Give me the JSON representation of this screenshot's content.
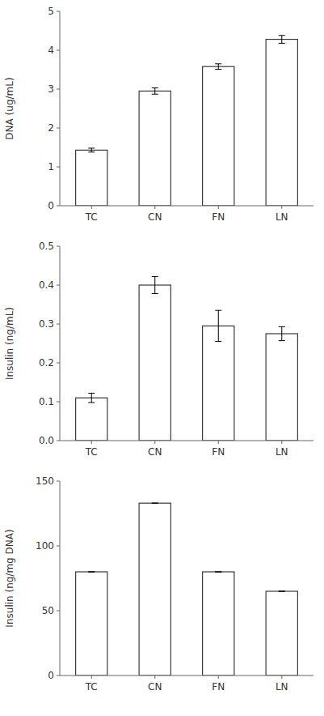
{
  "chart_data": [
    {
      "type": "bar",
      "categories": [
        "TC",
        "CN",
        "FN",
        "LN"
      ],
      "values": [
        1.43,
        2.95,
        3.58,
        4.28
      ],
      "errors": [
        0.05,
        0.08,
        0.07,
        0.1
      ],
      "y_label": "DNA (ug/mL)",
      "ylim": [
        0,
        5
      ],
      "yticks": [
        0,
        1,
        2,
        3,
        4,
        5
      ],
      "color": "#ffffff",
      "grid": false
    },
    {
      "type": "bar",
      "categories": [
        "TC",
        "CN",
        "FN",
        "LN"
      ],
      "values": [
        0.11,
        0.4,
        0.295,
        0.275
      ],
      "errors": [
        0.012,
        0.022,
        0.04,
        0.018
      ],
      "y_label": "Insulin (ng/mL)",
      "ylim": [
        0.0,
        0.5
      ],
      "yticks": [
        {
          "value": 0,
          "label": "0.0"
        },
        0.1,
        0.2,
        0.3,
        0.4,
        0.5
      ],
      "color": "#ffffff",
      "grid": false
    },
    {
      "type": "bar",
      "categories": [
        "TC",
        "CN",
        "FN",
        "LN"
      ],
      "values": [
        80,
        133,
        80,
        65
      ],
      "errors": [
        0,
        0,
        0,
        0
      ],
      "y_label": "Insulin (ng/mg DNA)",
      "ylim": [
        0,
        150
      ],
      "yticks": [
        0,
        50,
        100,
        150
      ],
      "color": "#ffffff",
      "grid": false
    }
  ]
}
